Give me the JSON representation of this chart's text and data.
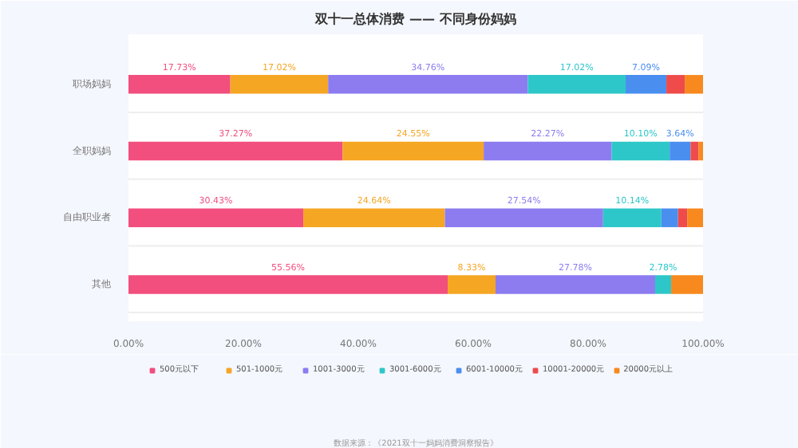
{
  "chart_data": {
    "type": "bar",
    "orientation": "horizontal",
    "stacked": true,
    "title": "双十一总体消费 —— 不同身份妈妈",
    "categories": [
      "职场妈妈",
      "全职妈妈",
      "自由职业者",
      "其他"
    ],
    "series": [
      {
        "name": "500元以下",
        "color": "#f24e7e",
        "values": [
          17.73,
          37.27,
          30.43,
          55.56
        ],
        "value_labels": [
          "17.73%",
          "37.27%",
          "30.43%",
          "55.56%"
        ]
      },
      {
        "name": "501-1000元",
        "color": "#f5a623",
        "values": [
          17.02,
          24.55,
          24.64,
          8.33
        ],
        "value_labels": [
          "17.02%",
          "24.55%",
          "24.64%",
          "8.33%"
        ]
      },
      {
        "name": "1001-3000元",
        "color": "#8c7cf0",
        "values": [
          34.76,
          22.27,
          27.54,
          27.78
        ],
        "value_labels": [
          "34.76%",
          "22.27%",
          "27.54%",
          "27.78%"
        ]
      },
      {
        "name": "3001-6000元",
        "color": "#2ec7c9",
        "values": [
          17.02,
          10.1,
          10.14,
          2.78
        ],
        "value_labels": [
          "17.02%",
          "10.10%",
          "10.14%",
          "2.78%"
        ]
      },
      {
        "name": "6001-10000元",
        "color": "#4a8ff0",
        "values": [
          7.09,
          3.64,
          2.9,
          null
        ],
        "value_labels": [
          "7.09%",
          "3.64%",
          null,
          null
        ]
      },
      {
        "name": "10001-20000元",
        "color": "#ef4b4b",
        "values": [
          3.2,
          1.4,
          1.6,
          null
        ]
      },
      {
        "name": "20000元以上",
        "color": "#f7891e",
        "values": [
          3.2,
          0.8,
          2.8,
          5.6
        ]
      }
    ],
    "xlim": [
      0,
      100
    ],
    "xticks": [
      {
        "value": 0,
        "label": "0.00%"
      },
      {
        "value": 20,
        "label": "20.00%"
      },
      {
        "value": 40,
        "label": "40.00%"
      },
      {
        "value": 60,
        "label": "60.00%"
      },
      {
        "value": 80,
        "label": "80.00%"
      },
      {
        "value": 100,
        "label": "100.00%"
      }
    ],
    "grid": false,
    "legend": "bottom",
    "annotations": [
      "数据来源：《2021双十一妈妈消费洞察报告》"
    ]
  }
}
